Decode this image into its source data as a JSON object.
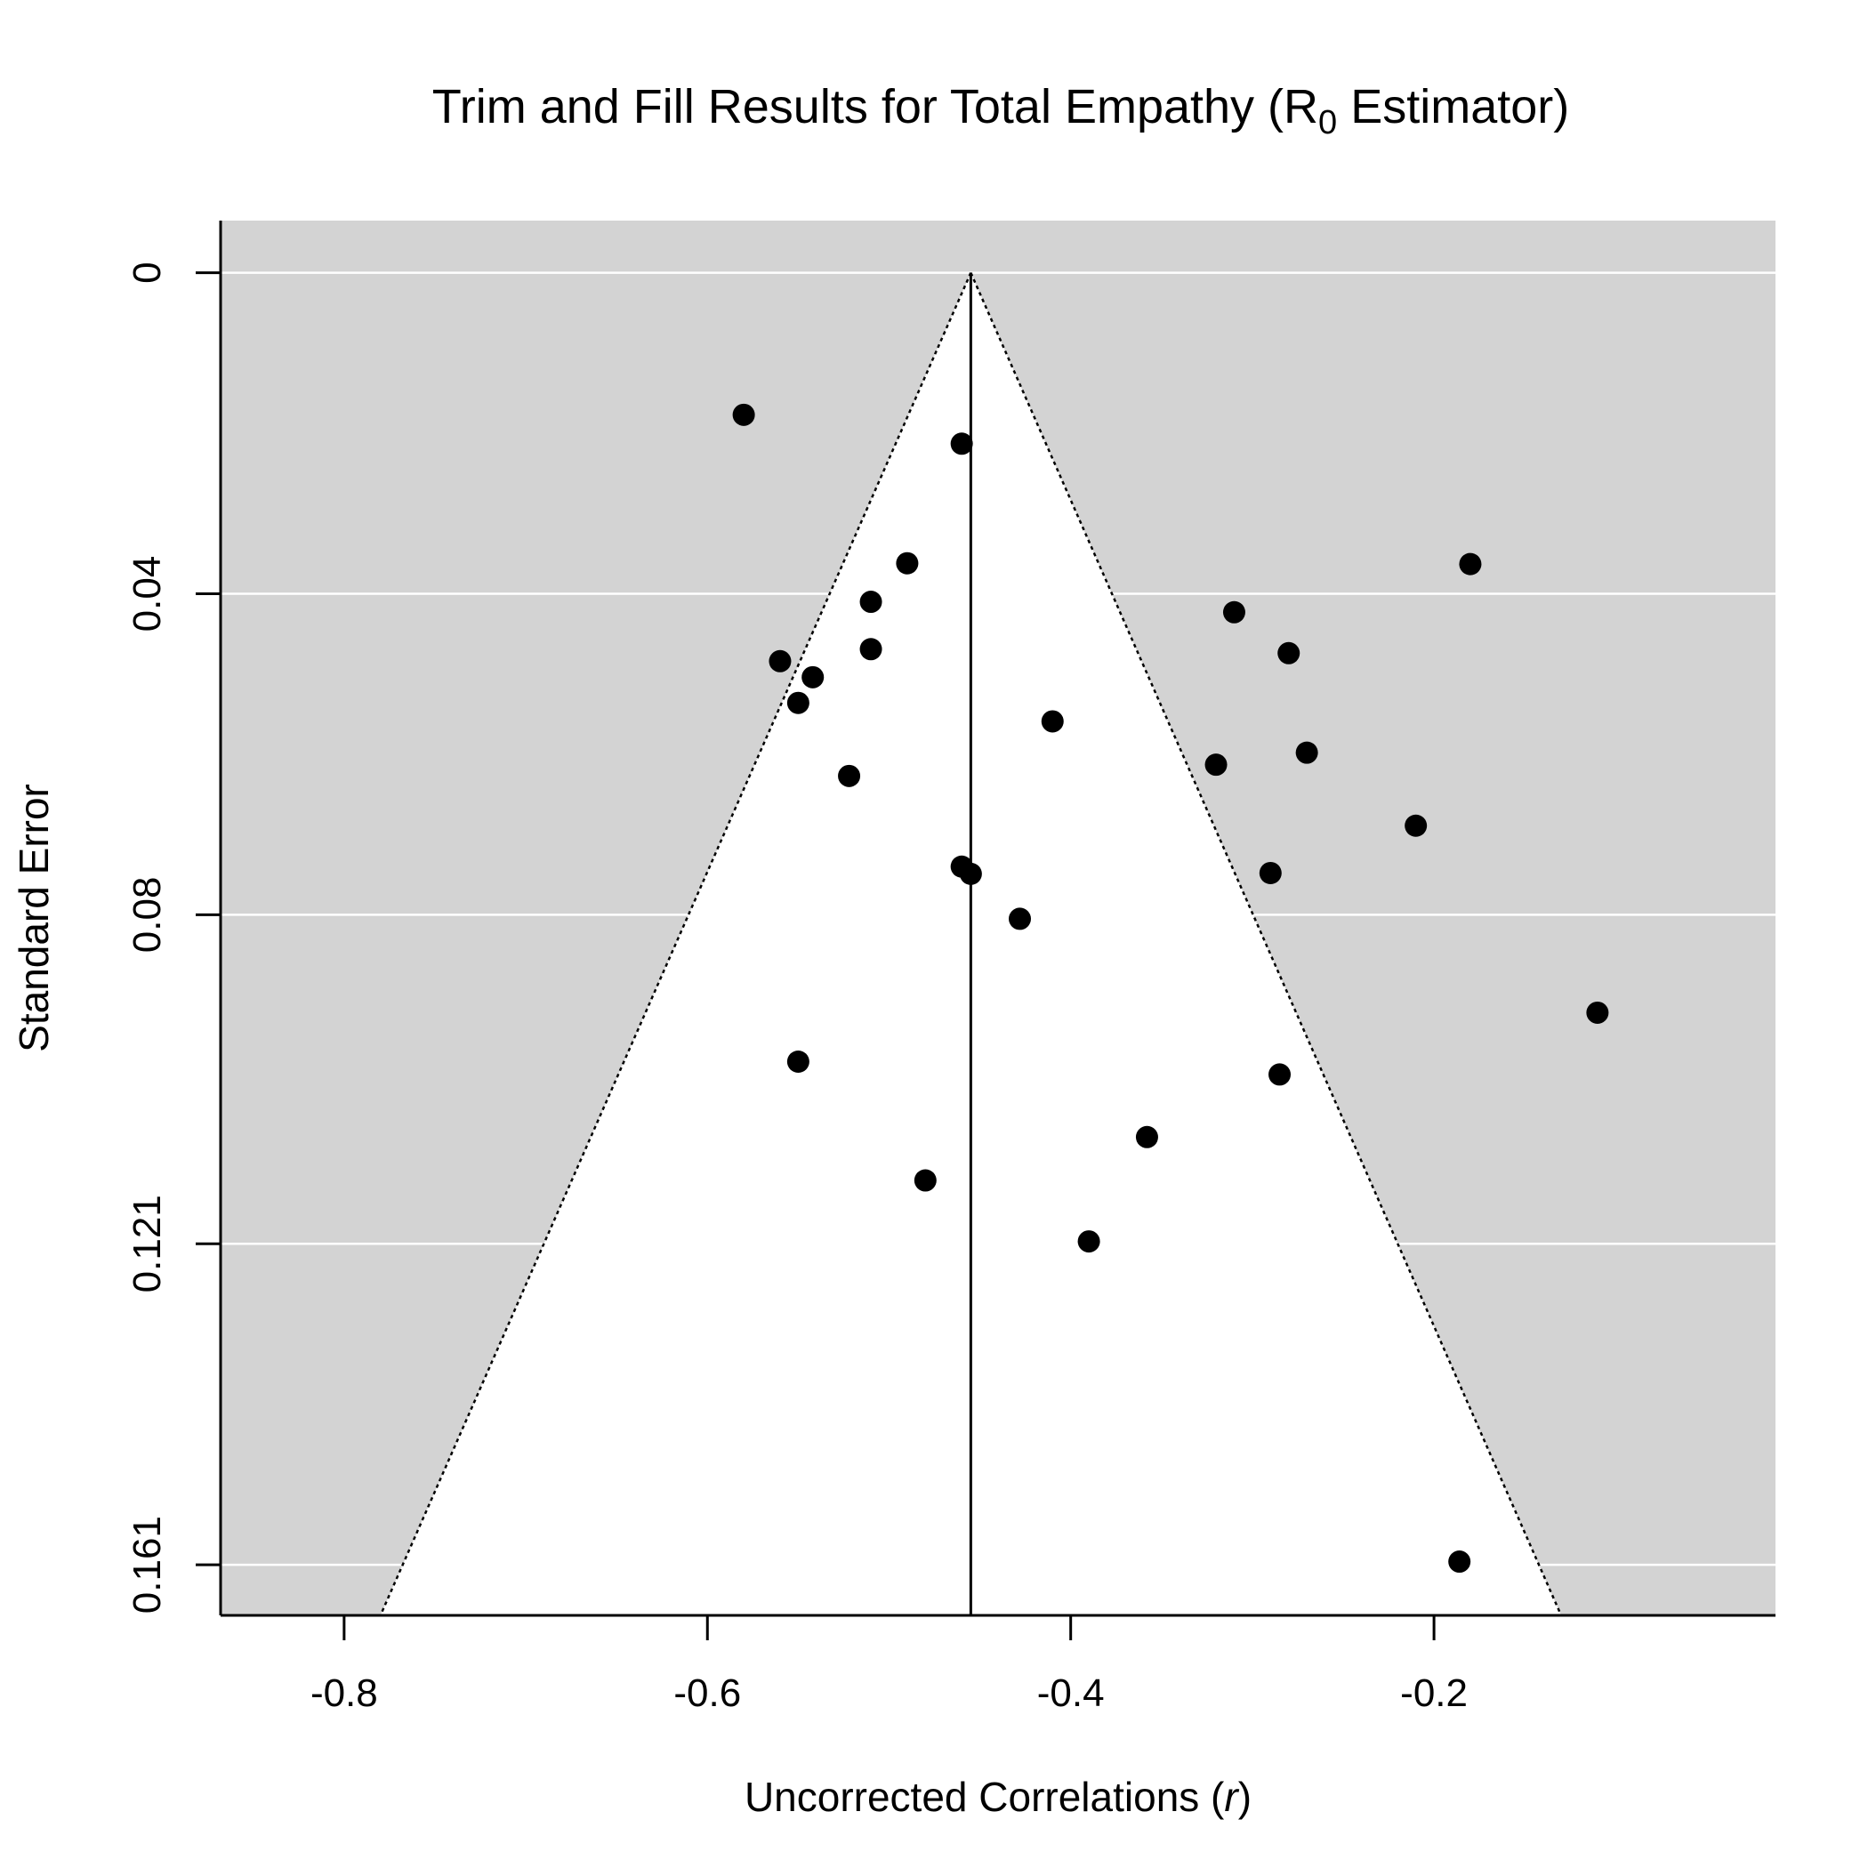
{
  "chart_data": {
    "type": "scatter",
    "title": {
      "main": "Trim and Fill Results for Total Empathy (R",
      "subscript": "0",
      "suffix": " Estimator)"
    },
    "xlabel": {
      "main": "Uncorrected Correlations (",
      "italic": "r",
      "suffix": ")"
    },
    "ylabel": "Standard Error",
    "xlim": [
      -0.868,
      -0.012
    ],
    "ylim": [
      0.1673,
      -0.0065
    ],
    "x_ticks": [
      -0.8,
      -0.6,
      -0.4,
      -0.2
    ],
    "x_tick_labels": [
      "-0.8",
      "-0.6",
      "-0.4",
      "-0.2"
    ],
    "y_ticks": [
      0,
      0.04,
      0.08,
      0.121,
      0.161
    ],
    "y_tick_labels": [
      "0",
      "0.04",
      "0.08",
      "0.121",
      "0.161"
    ],
    "grid": true,
    "y_reversed": true,
    "summary_estimate": -0.455,
    "funnel_limits": {
      "se_range": [
        0,
        0.1673
      ],
      "left_bottom_x": -0.78,
      "right_bottom_x": -0.13
    },
    "colors": {
      "outside_funnel": "#d3d3d3",
      "inside_funnel": "#ffffff",
      "points": "#000000",
      "grid": "#ffffff"
    },
    "points": [
      {
        "x": -0.58,
        "y": 0.0177
      },
      {
        "x": -0.46,
        "y": 0.0213
      },
      {
        "x": -0.49,
        "y": 0.0362
      },
      {
        "x": -0.51,
        "y": 0.041
      },
      {
        "x": -0.51,
        "y": 0.0469
      },
      {
        "x": -0.56,
        "y": 0.0484
      },
      {
        "x": -0.542,
        "y": 0.0504
      },
      {
        "x": -0.55,
        "y": 0.0536
      },
      {
        "x": -0.41,
        "y": 0.0559
      },
      {
        "x": -0.522,
        "y": 0.0627
      },
      {
        "x": -0.46,
        "y": 0.074
      },
      {
        "x": -0.455,
        "y": 0.0749
      },
      {
        "x": -0.428,
        "y": 0.0805
      },
      {
        "x": -0.55,
        "y": 0.0983
      },
      {
        "x": -0.48,
        "y": 0.1131
      },
      {
        "x": -0.39,
        "y": 0.1207
      },
      {
        "x": -0.358,
        "y": 0.1077
      },
      {
        "x": -0.285,
        "y": 0.0999
      },
      {
        "x": -0.31,
        "y": 0.0423
      },
      {
        "x": -0.28,
        "y": 0.0474
      },
      {
        "x": -0.32,
        "y": 0.0613
      },
      {
        "x": -0.27,
        "y": 0.0598
      },
      {
        "x": -0.29,
        "y": 0.0748
      },
      {
        "x": -0.18,
        "y": 0.0363
      },
      {
        "x": -0.21,
        "y": 0.0689
      },
      {
        "x": -0.11,
        "y": 0.0922
      },
      {
        "x": -0.186,
        "y": 0.1606
      }
    ]
  }
}
